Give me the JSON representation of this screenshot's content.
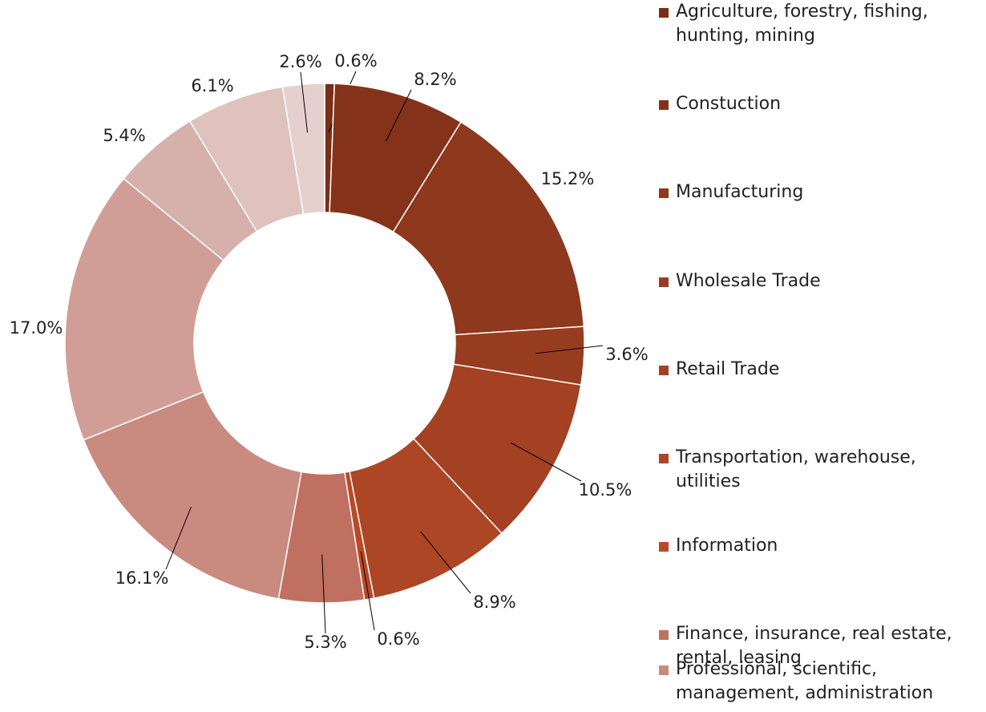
{
  "chart_data": {
    "type": "donut",
    "categories": [
      "Agriculture, forestry, fishing, hunting, mining",
      "Constuction",
      "Manufacturing",
      "Wholesale Trade",
      "Retail Trade",
      "Transportation, warehouse, utilities",
      "Information",
      "Finance, insurance, real estate, rental, leasing",
      "Professional, scientific, management, administration",
      null,
      null,
      null,
      null
    ],
    "values": [
      0.6,
      8.2,
      15.2,
      3.6,
      10.5,
      8.9,
      0.6,
      5.3,
      16.1,
      17.0,
      5.4,
      6.1,
      2.6
    ],
    "value_labels": [
      "0.6%",
      "8.2%",
      "15.2%",
      "3.6%",
      "10.5%",
      "8.9%",
      "0.6%",
      "5.3%",
      "16.1%",
      "17.0%",
      "5.4%",
      "6.1%",
      "2.6%"
    ],
    "colors": [
      "#7a2e17",
      "#84331a",
      "#8e381d",
      "#983c20",
      "#a34122",
      "#ad4625",
      "#b84a27",
      "#c07060",
      "#c98a80",
      "#d09e96",
      "#d6b0aa",
      "#dfc2bd",
      "#e6d0cd"
    ]
  }
}
